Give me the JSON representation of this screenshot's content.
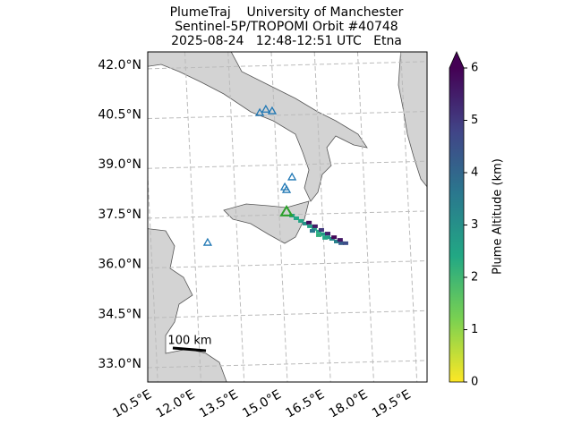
{
  "chart_data": {
    "type": "map",
    "title": [
      "PlumeTraj    University of Manchester",
      "Sentinel-5P/TROPOMI Orbit #40748",
      "2025-08-24   12:48-12:51 UTC   Etna"
    ],
    "xlim": [
      10.4,
      20.1
    ],
    "ylim": [
      32.46,
      42.4
    ],
    "xticks": [
      {
        "value": 10.5,
        "label": "10.5°E"
      },
      {
        "value": 12,
        "label": "12.0°E"
      },
      {
        "value": 13.5,
        "label": "13.5°E"
      },
      {
        "value": 15,
        "label": "15.0°E"
      },
      {
        "value": 16.5,
        "label": "16.5°E"
      },
      {
        "value": 18,
        "label": "18.0°E"
      },
      {
        "value": 19.5,
        "label": "19.5°E"
      }
    ],
    "yticks": [
      {
        "value": 33,
        "label": "33.0°N"
      },
      {
        "value": 34.5,
        "label": "34.5°N"
      },
      {
        "value": 36,
        "label": "36.0°N"
      },
      {
        "value": 37.5,
        "label": "37.5°N"
      },
      {
        "value": 39,
        "label": "39.0°N"
      },
      {
        "value": 40.5,
        "label": "40.5°N"
      },
      {
        "value": 42,
        "label": "42.0°N"
      }
    ],
    "grid": true,
    "volcanoes": {
      "color": "#1f77b4",
      "lon": [
        14.29,
        14.5,
        14.72,
        15.41,
        15.16,
        15.22,
        12.48
      ],
      "lat": [
        40.57,
        40.67,
        40.62,
        38.63,
        38.33,
        38.25,
        36.66
      ]
    },
    "target_volcano": {
      "color": "#2ca02c",
      "lon": 15.22,
      "lat": 37.58
    },
    "plume": {
      "lon": [
        15.41,
        15.56,
        15.72,
        15.87,
        16.03,
        16.18,
        16.34,
        16.49,
        16.65,
        16.8,
        16.96,
        17.12,
        17.27,
        16.0,
        16.21,
        16.43,
        16.65,
        16.87,
        17.08,
        16.12,
        16.34,
        16.56
      ],
      "lat": [
        37.47,
        37.39,
        37.31,
        37.23,
        37.15,
        37.07,
        36.99,
        36.91,
        36.82,
        36.77,
        36.69,
        36.64,
        36.64,
        37.26,
        37.15,
        37.04,
        36.93,
        36.82,
        36.74,
        37.01,
        36.88,
        36.8
      ],
      "altitude": [
        2.6,
        2.4,
        2.5,
        3.0,
        2.6,
        2.5,
        2.4,
        2.7,
        2.8,
        3.1,
        3.4,
        4.2,
        4.6,
        5.8,
        5.5,
        5.0,
        5.4,
        5.9,
        5.6,
        3.6,
        2.2,
        2.5
      ]
    },
    "colorbar": {
      "label": "Plume Altitude (km)",
      "colormap": "viridis",
      "lim": [
        0,
        6
      ],
      "ticks": [
        0,
        1,
        2,
        3,
        4,
        5,
        6
      ]
    },
    "scale_bar": "100 km"
  }
}
